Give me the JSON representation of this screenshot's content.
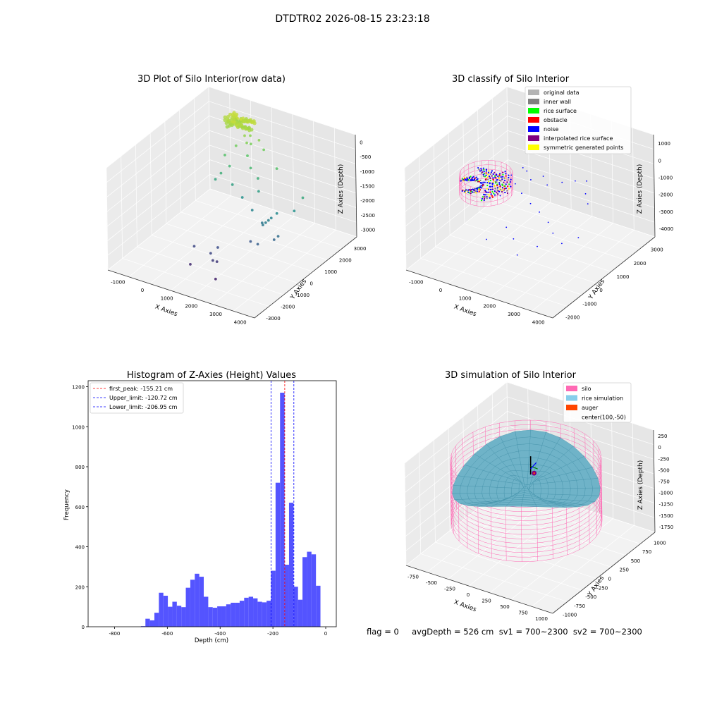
{
  "suptitle": "DTDTR02 2026-08-15 23:23:18",
  "footer": "flag = 0     avgDepth = 526 cm  sv1 = 700~2300  sv2 = 700~2300",
  "chart_data": [
    {
      "type": "scatter",
      "id": "raw",
      "title": "3D Plot of Silo Interior(row data)",
      "xlabel": "X Axies",
      "ylabel": "Y Axies",
      "zlabel": "Z Axies (Depth)",
      "xticks": [
        "-1000",
        "0",
        "1000",
        "2000",
        "3000",
        "4000"
      ],
      "yticks": [
        "-3000",
        "-2000",
        "-1000",
        "0",
        "1000",
        "2000",
        "3000"
      ],
      "zticks": [
        "0",
        "-500",
        "-1000",
        "-1500",
        "-2000",
        "-2500",
        "-3000"
      ],
      "xlim": [
        -1500,
        4200
      ],
      "ylim": [
        -3200,
        3500
      ],
      "zlim": [
        -3300,
        50
      ],
      "colormap": [
        "#440154",
        "#3b528b",
        "#21908d",
        "#5dc963",
        "#fde725"
      ],
      "points": [
        [
          100,
          2700,
          -230
        ],
        [
          180,
          2800,
          -280
        ],
        [
          250,
          2650,
          -200
        ],
        [
          140,
          2550,
          -330
        ],
        [
          300,
          2750,
          -300
        ],
        [
          60,
          2700,
          -380
        ],
        [
          220,
          2850,
          -240
        ],
        [
          330,
          2600,
          -420
        ],
        [
          170,
          2650,
          -460
        ],
        [
          280,
          2500,
          -350
        ],
        [
          380,
          2900,
          -330
        ],
        [
          120,
          2450,
          -250
        ],
        [
          600,
          2300,
          -500
        ],
        [
          800,
          2100,
          -600
        ],
        [
          700,
          2500,
          -550
        ],
        [
          500,
          1900,
          -700
        ],
        [
          900,
          2200,
          -650
        ],
        [
          1100,
          2400,
          -550
        ],
        [
          1400,
          2200,
          -700
        ],
        [
          1000,
          1800,
          -850
        ],
        [
          300,
          1500,
          -900
        ],
        [
          500,
          900,
          -1200
        ],
        [
          600,
          1300,
          -1100
        ],
        [
          400,
          700,
          -1350
        ],
        [
          1300,
          1500,
          -1050
        ],
        [
          1700,
          1300,
          -1200
        ],
        [
          2200,
          1700,
          -900
        ],
        [
          1900,
          1000,
          -1450
        ],
        [
          1000,
          800,
          -1400
        ],
        [
          1500,
          600,
          -1600
        ],
        [
          2000,
          400,
          -1800
        ],
        [
          2500,
          200,
          -2000
        ],
        [
          2900,
          500,
          -1700
        ],
        [
          2800,
          300,
          -1800
        ],
        [
          2750,
          200,
          -1850
        ],
        [
          2700,
          100,
          -1900
        ],
        [
          2650,
          0,
          -1950
        ],
        [
          3300,
          -100,
          -2100
        ],
        [
          3200,
          -200,
          -2200
        ],
        [
          3500,
          1200,
          -1300
        ],
        [
          3400,
          800,
          -1600
        ],
        [
          2800,
          -600,
          -2300
        ],
        [
          2400,
          -400,
          -2400
        ],
        [
          1600,
          -1200,
          -2500
        ],
        [
          1500,
          -1500,
          -2600
        ],
        [
          1700,
          -1700,
          -2700
        ],
        [
          1800,
          -1600,
          -2750
        ],
        [
          800,
          -1400,
          -2600
        ],
        [
          1000,
          -2000,
          -2900
        ],
        [
          2100,
          -2200,
          -3000
        ]
      ]
    },
    {
      "type": "scatter",
      "id": "classify",
      "title": "3D classify of Silo Interior",
      "xlabel": "X Axies",
      "ylabel": "Y Axies",
      "zlabel": "Z Axies (Depth)",
      "xticks": [
        "-1000",
        "0",
        "1000",
        "2000",
        "3000",
        "4000"
      ],
      "yticks": [
        "-2000",
        "-1000",
        "0",
        "1000",
        "2000",
        "3000"
      ],
      "zticks": [
        "1000",
        "0",
        "-1000",
        "-2000",
        "-3000",
        "-4000"
      ],
      "xlim": [
        -1500,
        4500
      ],
      "ylim": [
        -2500,
        3500
      ],
      "zlim": [
        -4400,
        1300
      ],
      "legend": [
        {
          "label": "original data",
          "color": "#b3b3b3"
        },
        {
          "label": "inner wall",
          "color": "#808080"
        },
        {
          "label": "rice surface",
          "color": "#00ff00"
        },
        {
          "label": "obstacle",
          "color": "#ff0000"
        },
        {
          "label": "noise",
          "color": "#0000ff"
        },
        {
          "label": "interpolated rice surface",
          "color": "#800080"
        },
        {
          "label": "symmetric generated points",
          "color": "#ffff00"
        }
      ],
      "noise_points": [
        [
          600,
          1400,
          -700
        ],
        [
          900,
          1200,
          -600
        ],
        [
          1200,
          1000,
          -800
        ],
        [
          1500,
          1300,
          -700
        ],
        [
          1800,
          1100,
          -900
        ],
        [
          2200,
          1400,
          -800
        ],
        [
          2600,
          1600,
          -700
        ],
        [
          3000,
          1700,
          -600
        ],
        [
          3300,
          1200,
          -800
        ],
        [
          3600,
          900,
          -1000
        ],
        [
          700,
          800,
          -1100
        ],
        [
          1100,
          600,
          -1300
        ],
        [
          1600,
          400,
          -1500
        ],
        [
          2100,
          200,
          -1600
        ],
        [
          2600,
          0,
          -1800
        ],
        [
          3000,
          -300,
          -2000
        ],
        [
          3500,
          -500,
          -2200
        ],
        [
          3900,
          -100,
          -2000
        ],
        [
          1300,
          -600,
          -2200
        ],
        [
          1800,
          -900,
          -2400
        ],
        [
          900,
          -1200,
          -2600
        ],
        [
          2300,
          -1400,
          -2700
        ],
        [
          2700,
          -800,
          -2500
        ],
        [
          500,
          200,
          -1400
        ],
        [
          400,
          1000,
          -900
        ]
      ],
      "silo_center": [
        100,
        -50
      ],
      "silo_radius": 900,
      "silo_z": [
        -200,
        -1200
      ]
    },
    {
      "type": "bar",
      "id": "histogram",
      "title": "Histogram of Z-Axies (Height) Values",
      "xlabel": "Depth (cm)",
      "ylabel": "Frequency",
      "xlim": [
        -900,
        40
      ],
      "ylim": [
        0,
        1230
      ],
      "xticks": [
        -800,
        -600,
        -400,
        -200,
        0
      ],
      "yticks": [
        0,
        200,
        400,
        600,
        800,
        1000,
        1200
      ],
      "bin_start": -700,
      "bin_width": 17,
      "values": [
        3,
        40,
        32,
        70,
        170,
        155,
        100,
        125,
        105,
        98,
        195,
        235,
        265,
        250,
        150,
        98,
        95,
        102,
        102,
        112,
        120,
        120,
        130,
        145,
        150,
        142,
        125,
        122,
        130,
        280,
        720,
        1170,
        310,
        620,
        200,
        135,
        348,
        375,
        362,
        205
      ],
      "lines": [
        {
          "label": "first_peak: -155.21 cm",
          "x": -155.21,
          "color": "#ff0000"
        },
        {
          "label": "Upper_limit: -120.72 cm",
          "x": -120.72,
          "color": "#0000ff"
        },
        {
          "label": "Lower_limit: -206.95 cm",
          "x": -206.95,
          "color": "#0000ff"
        }
      ],
      "bar_color": "#4b4bff"
    },
    {
      "type": "surface",
      "id": "simulation",
      "title": "3D simulation of Silo Interior",
      "xlabel": "X Axies",
      "ylabel": "Y Axies",
      "zlabel": "Z Axies (Depth)",
      "xticks": [
        "-750",
        "-500",
        "-250",
        "0",
        "250",
        "500",
        "750",
        "1000"
      ],
      "yticks": [
        "-1000",
        "-750",
        "-500",
        "-250",
        "0",
        "250",
        "500",
        "750",
        "1000"
      ],
      "zticks": [
        "250",
        "0",
        "-250",
        "-500",
        "-750",
        "-1000",
        "-1250",
        "-1500",
        "-1750"
      ],
      "xlim": [
        -1000,
        1100
      ],
      "ylim": [
        -1100,
        1100
      ],
      "zlim": [
        -1850,
        400
      ],
      "legend": [
        {
          "label": "silo",
          "color": "#ff69b4"
        },
        {
          "label": "rice simulation",
          "color": "#87ceeb"
        },
        {
          "label": "auger",
          "color": "#ff4500"
        },
        {
          "label": "center(100,-50)",
          "color": ""
        }
      ],
      "silo_radius": 900,
      "silo_z": [
        100,
        -1300
      ]
    }
  ]
}
